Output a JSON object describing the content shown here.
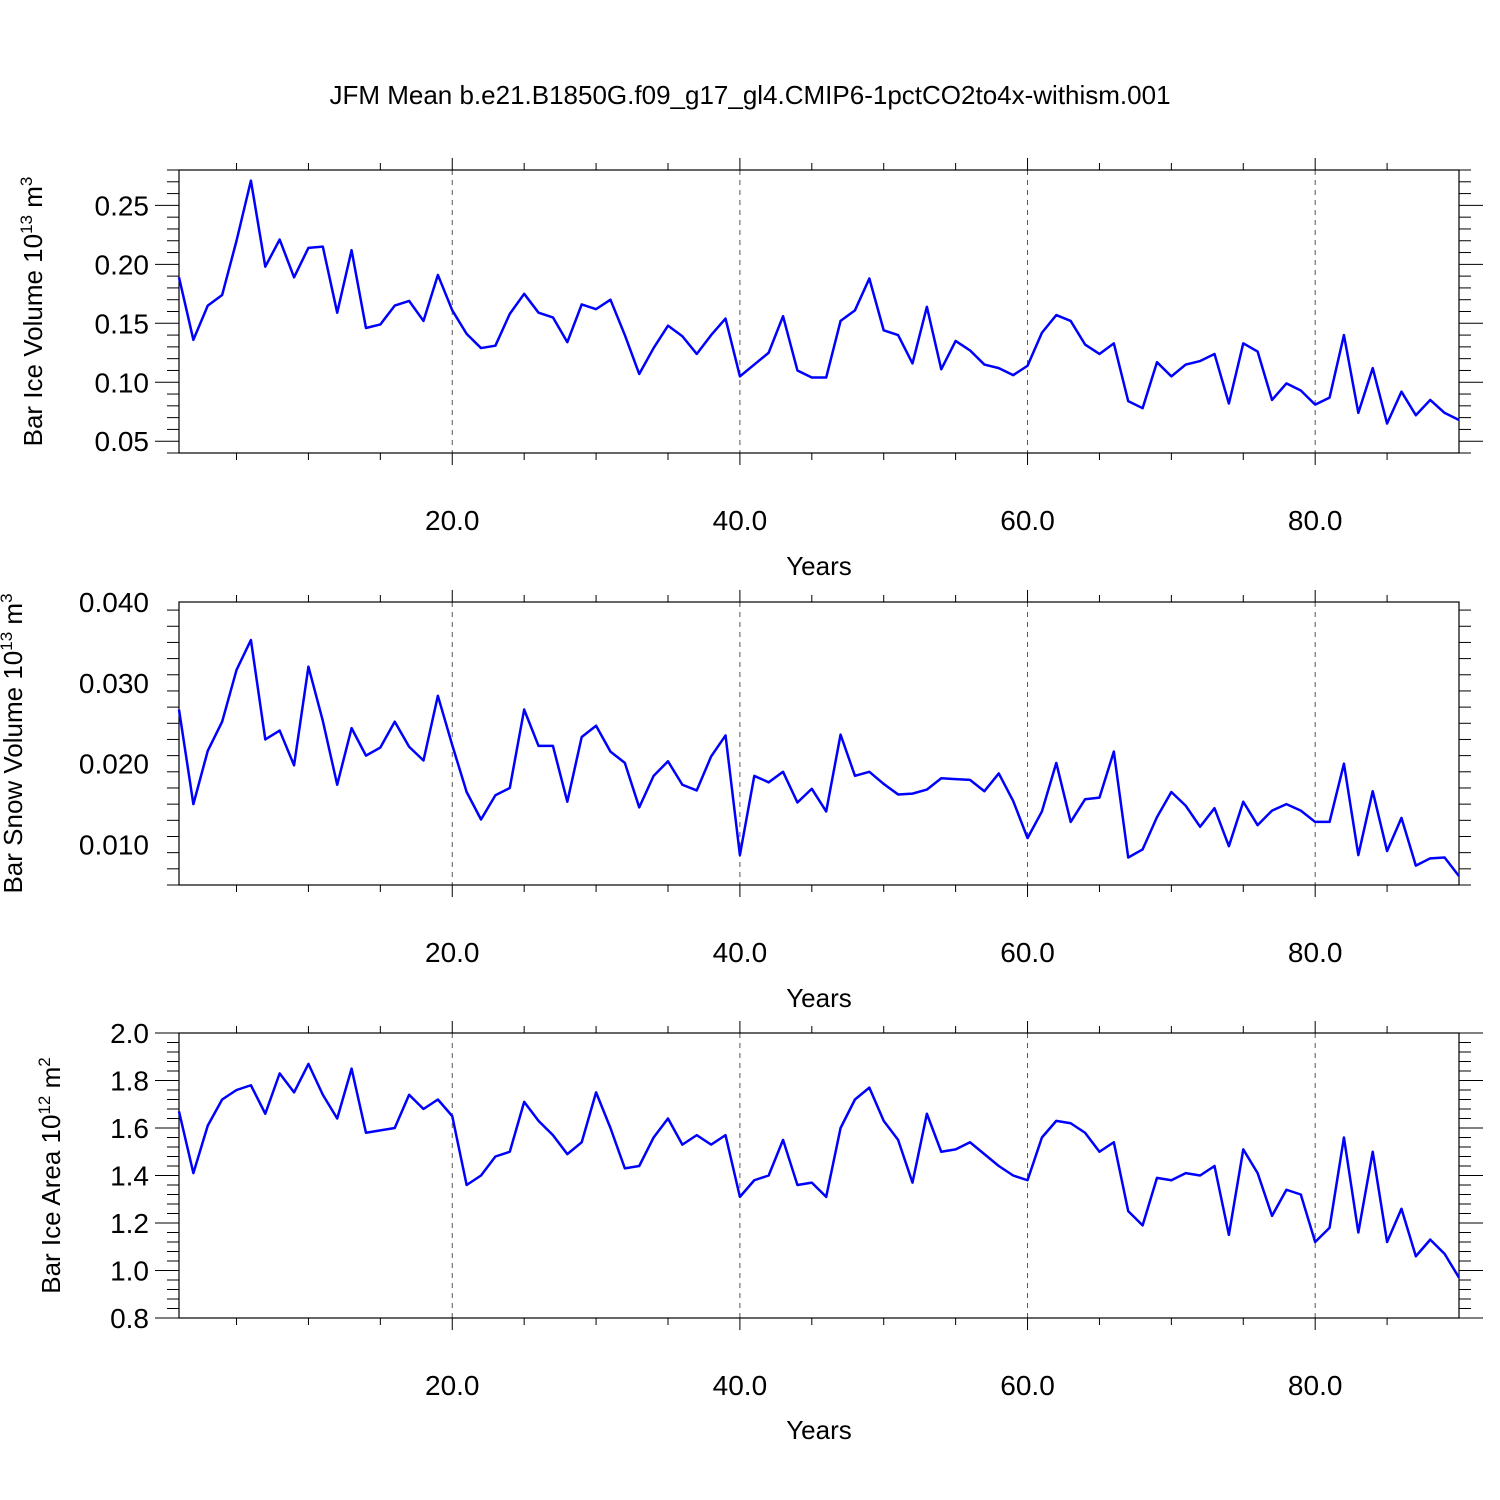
{
  "title": "JFM Mean b.e21.B1850G.f09_g17_gl4.CMIP6-1pctCO2to4x-withism.001",
  "line_color": "#0000ff",
  "chart_data": [
    {
      "type": "line",
      "xlabel": "Years",
      "ylabel_text": "Bar Ice Volume 10",
      "ylabel_exp": "13",
      "ylabel_unit": " m",
      "ylabel_unit_exp": "3",
      "xlim": [
        1,
        90
      ],
      "ylim": [
        0.04,
        0.28
      ],
      "xticks": [
        20,
        40,
        60,
        80
      ],
      "xtick_labels": [
        "20.0",
        "40.0",
        "60.0",
        "80.0"
      ],
      "yticks": [
        0.05,
        0.1,
        0.15,
        0.2,
        0.25
      ],
      "ytick_labels": [
        "0.05",
        "0.10",
        "0.15",
        "0.20",
        "0.25"
      ],
      "grid": "vertical dashed at major x ticks",
      "series": [
        {
          "x_start": 1,
          "x_step": 1,
          "values": [
            0.189,
            0.136,
            0.165,
            0.174,
            0.22,
            0.271,
            0.198,
            0.221,
            0.189,
            0.214,
            0.215,
            0.159,
            0.212,
            0.146,
            0.149,
            0.165,
            0.169,
            0.152,
            0.191,
            0.161,
            0.141,
            0.129,
            0.131,
            0.158,
            0.175,
            0.159,
            0.155,
            0.134,
            0.166,
            0.162,
            0.17,
            0.14,
            0.107,
            0.129,
            0.148,
            0.139,
            0.124,
            0.14,
            0.154,
            0.105,
            0.115,
            0.125,
            0.156,
            0.11,
            0.104,
            0.104,
            0.152,
            0.161,
            0.188,
            0.144,
            0.14,
            0.116,
            0.164,
            0.111,
            0.135,
            0.127,
            0.115,
            0.112,
            0.106,
            0.114,
            0.142,
            0.157,
            0.152,
            0.132,
            0.124,
            0.133,
            0.084,
            0.078,
            0.117,
            0.105,
            0.115,
            0.118,
            0.124,
            0.082,
            0.133,
            0.126,
            0.085,
            0.099,
            0.093,
            0.081,
            0.087,
            0.14,
            0.074,
            0.112,
            0.065,
            0.092,
            0.072,
            0.085,
            0.074,
            0.068
          ]
        }
      ]
    },
    {
      "type": "line",
      "xlabel": "Years",
      "ylabel_text": "Bar Snow Volume 10",
      "ylabel_exp": "13",
      "ylabel_unit": " m",
      "ylabel_unit_exp": "3",
      "xlim": [
        1,
        90
      ],
      "ylim": [
        0.005,
        0.04
      ],
      "xticks": [
        20,
        40,
        60,
        80
      ],
      "xtick_labels": [
        "20.0",
        "40.0",
        "60.0",
        "80.0"
      ],
      "yticks": [
        0.01,
        0.02,
        0.03,
        0.04
      ],
      "ytick_labels": [
        "0.010",
        "0.020",
        "0.030",
        "0.040"
      ],
      "grid": "vertical dashed at major x ticks",
      "series": [
        {
          "x_start": 1,
          "x_step": 1,
          "values": [
            0.0267,
            0.015,
            0.0216,
            0.0252,
            0.0316,
            0.0353,
            0.023,
            0.0241,
            0.0198,
            0.032,
            0.0253,
            0.0174,
            0.0244,
            0.021,
            0.022,
            0.0252,
            0.0221,
            0.0204,
            0.0284,
            0.0223,
            0.0165,
            0.0131,
            0.0161,
            0.017,
            0.0267,
            0.0222,
            0.0222,
            0.0153,
            0.0233,
            0.0247,
            0.0215,
            0.0201,
            0.0146,
            0.0185,
            0.0203,
            0.0174,
            0.0167,
            0.0209,
            0.0235,
            0.0087,
            0.0185,
            0.0177,
            0.019,
            0.0152,
            0.0169,
            0.0141,
            0.0236,
            0.0185,
            0.019,
            0.0175,
            0.0162,
            0.0163,
            0.0168,
            0.0182,
            0.0181,
            0.018,
            0.0166,
            0.0188,
            0.0154,
            0.0108,
            0.0141,
            0.0201,
            0.0128,
            0.0156,
            0.0158,
            0.0215,
            0.0084,
            0.0094,
            0.0134,
            0.0165,
            0.0148,
            0.0122,
            0.0145,
            0.0098,
            0.0153,
            0.0124,
            0.0142,
            0.015,
            0.0142,
            0.0128,
            0.0128,
            0.02,
            0.0087,
            0.0166,
            0.0092,
            0.0133,
            0.0074,
            0.0083,
            0.0084,
            0.0061
          ]
        }
      ]
    },
    {
      "type": "line",
      "xlabel": "Years",
      "ylabel_text": "Bar Ice Area 10",
      "ylabel_exp": "12",
      "ylabel_unit": " m",
      "ylabel_unit_exp": "2",
      "xlim": [
        1,
        90
      ],
      "ylim": [
        0.8,
        2.0
      ],
      "xticks": [
        20,
        40,
        60,
        80
      ],
      "xtick_labels": [
        "20.0",
        "40.0",
        "60.0",
        "80.0"
      ],
      "yticks": [
        0.8,
        1.0,
        1.2,
        1.4,
        1.6,
        1.8,
        2.0
      ],
      "ytick_labels": [
        "0.8",
        "1.0",
        "1.2",
        "1.4",
        "1.6",
        "1.8",
        "2.0"
      ],
      "grid": "vertical dashed at major x ticks",
      "series": [
        {
          "x_start": 1,
          "x_step": 1,
          "values": [
            1.67,
            1.41,
            1.61,
            1.72,
            1.76,
            1.78,
            1.66,
            1.83,
            1.75,
            1.87,
            1.74,
            1.64,
            1.85,
            1.58,
            1.59,
            1.6,
            1.74,
            1.68,
            1.72,
            1.65,
            1.36,
            1.4,
            1.48,
            1.5,
            1.71,
            1.63,
            1.57,
            1.49,
            1.54,
            1.75,
            1.6,
            1.43,
            1.44,
            1.56,
            1.64,
            1.53,
            1.57,
            1.53,
            1.57,
            1.31,
            1.38,
            1.4,
            1.55,
            1.36,
            1.37,
            1.31,
            1.6,
            1.72,
            1.77,
            1.63,
            1.55,
            1.37,
            1.66,
            1.5,
            1.51,
            1.54,
            1.49,
            1.44,
            1.4,
            1.38,
            1.56,
            1.63,
            1.62,
            1.58,
            1.5,
            1.54,
            1.25,
            1.19,
            1.39,
            1.38,
            1.41,
            1.4,
            1.44,
            1.15,
            1.51,
            1.41,
            1.23,
            1.34,
            1.32,
            1.12,
            1.18,
            1.56,
            1.16,
            1.5,
            1.12,
            1.26,
            1.06,
            1.13,
            1.07,
            0.97
          ]
        }
      ]
    }
  ]
}
